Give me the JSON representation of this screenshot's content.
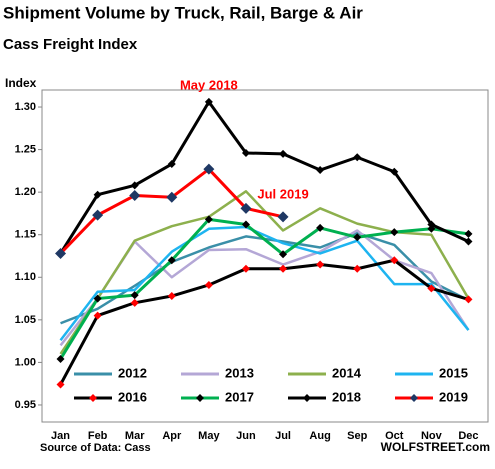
{
  "chart_data": {
    "type": "line",
    "title": "Shipment Volume by Truck, Rail, Barge & Air",
    "subtitle": "Cass Freight Index",
    "y_label": "Index",
    "source": "Source of Data: Cass",
    "credit": "WOLFSTREET.com",
    "annotations": [
      {
        "text": "May 2018",
        "color": "#ff0000"
      },
      {
        "text": "Jul 2019",
        "color": "#ff0000"
      }
    ],
    "categories": [
      "Jan",
      "Feb",
      "Mar",
      "Apr",
      "May",
      "Jun",
      "Jul",
      "Aug",
      "Sep",
      "Oct",
      "Nov",
      "Dec"
    ],
    "ylim": [
      0.93,
      1.32
    ],
    "yticks": [
      {
        "value": 0.95,
        "label": "0.95"
      },
      {
        "value": 1.0,
        "label": "1.00"
      },
      {
        "value": 1.05,
        "label": "1.05"
      },
      {
        "value": 1.1,
        "label": "1.10"
      },
      {
        "value": 1.15,
        "label": "1.15"
      },
      {
        "value": 1.2,
        "label": "1.20"
      },
      {
        "value": 1.25,
        "label": "1.25"
      },
      {
        "value": 1.3,
        "label": "1.30"
      }
    ],
    "grid": false,
    "series": [
      {
        "name": "2012",
        "color": "#3a8fa8",
        "values": [
          1.046,
          1.063,
          1.09,
          1.118,
          1.135,
          1.148,
          1.142,
          1.135,
          1.152,
          1.138,
          1.095,
          1.073
        ]
      },
      {
        "name": "2013",
        "color": "#b4a7d6",
        "values": [
          1.02,
          1.075,
          1.142,
          1.1,
          1.132,
          1.133,
          1.115,
          1.13,
          1.155,
          1.12,
          1.105,
          1.038
        ]
      },
      {
        "name": "2014",
        "color": "#8db04d",
        "values": [
          1.01,
          1.075,
          1.143,
          1.16,
          1.171,
          1.201,
          1.155,
          1.181,
          1.163,
          1.153,
          1.15,
          1.075
        ]
      },
      {
        "name": "2015",
        "color": "#1eb4f0",
        "values": [
          1.026,
          1.083,
          1.085,
          1.13,
          1.157,
          1.159,
          1.14,
          1.128,
          1.143,
          1.092,
          1.092,
          1.038
        ]
      },
      {
        "name": "2016",
        "color": "#000000",
        "marker_color": "#ff0000",
        "values": [
          0.974,
          1.055,
          1.07,
          1.078,
          1.091,
          1.11,
          1.11,
          1.115,
          1.11,
          1.12,
          1.087,
          1.074
        ]
      },
      {
        "name": "2017",
        "color": "#00b050",
        "marker_color": "#000000",
        "values": [
          1.004,
          1.075,
          1.079,
          1.12,
          1.168,
          1.162,
          1.127,
          1.158,
          1.147,
          1.153,
          1.157,
          1.151
        ]
      },
      {
        "name": "2018",
        "color": "#000000",
        "marker_color": "#000000",
        "values": [
          1.128,
          1.197,
          1.208,
          1.233,
          1.306,
          1.246,
          1.245,
          1.226,
          1.241,
          1.224,
          1.162,
          1.142
        ]
      },
      {
        "name": "2019",
        "color": "#ff0000",
        "marker_color": "#1f3864",
        "values": [
          1.128,
          1.173,
          1.196,
          1.194,
          1.227,
          1.181,
          1.171,
          null,
          null,
          null,
          null,
          null
        ]
      }
    ]
  }
}
